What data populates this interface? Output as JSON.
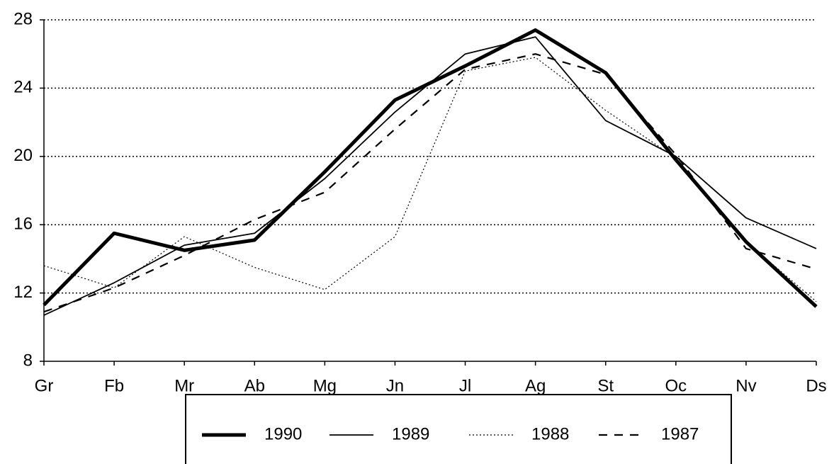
{
  "chart_data": {
    "type": "line",
    "categories": [
      "Gr",
      "Fb",
      "Mr",
      "Ab",
      "Mg",
      "Jn",
      "Jl",
      "Ag",
      "St",
      "Oc",
      "Nv",
      "Ds"
    ],
    "series": [
      {
        "name": "1990",
        "color": "#000000",
        "values": [
          11.3,
          15.5,
          14.5,
          15.1,
          19.1,
          23.3,
          25.3,
          27.4,
          24.9,
          19.8,
          15.0,
          11.2
        ]
      },
      {
        "name": "1989",
        "color": "#000000",
        "values": [
          10.7,
          12.6,
          14.8,
          15.5,
          18.7,
          22.6,
          26.0,
          27.0,
          22.1,
          20.0,
          16.4,
          14.6
        ]
      },
      {
        "name": "1988",
        "color": "#000000",
        "values": [
          13.6,
          12.3,
          15.3,
          13.5,
          12.2,
          15.3,
          25.0,
          25.8,
          22.7,
          19.9,
          15.0,
          11.5
        ]
      },
      {
        "name": "1987",
        "color": "#000000",
        "values": [
          10.9,
          12.3,
          14.2,
          16.3,
          17.9,
          21.6,
          25.1,
          26.0,
          24.8,
          20.1,
          14.6,
          13.4
        ]
      }
    ],
    "ylim": [
      8,
      28
    ],
    "yticks": [
      8,
      12,
      16,
      20,
      24,
      28
    ],
    "grid": true,
    "legend": "bottom"
  }
}
